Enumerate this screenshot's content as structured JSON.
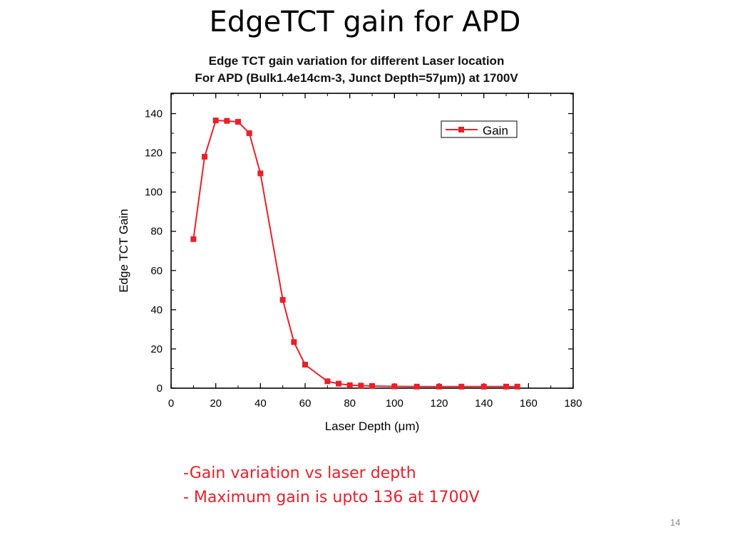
{
  "slide": {
    "title": "EdgeTCT gain for APD",
    "notes": [
      "-Gain variation vs laser depth",
      "- Maximum gain is upto 136 at 1700V"
    ],
    "page_number": "14"
  },
  "chart_data": {
    "type": "line",
    "title": "Edge TCT gain variation for different Laser location",
    "subtitle": "For APD (Bulk1.4e14cm-3, Junct Depth=57μm)) at 1700V",
    "xlabel": "Laser Depth (μm)",
    "ylabel": "Edge TCT Gain",
    "xlim": [
      0,
      180
    ],
    "ylim": [
      0,
      145
    ],
    "xticks": [
      0,
      20,
      40,
      60,
      80,
      100,
      120,
      140,
      160,
      180
    ],
    "yticks": [
      0,
      20,
      40,
      60,
      80,
      100,
      120,
      140
    ],
    "grid": false,
    "legend": "top-right",
    "series": [
      {
        "name": "Gain",
        "color": "#e8202a",
        "marker": "square",
        "x": [
          10,
          15,
          20,
          25,
          30,
          35,
          40,
          50,
          55,
          60,
          70,
          75,
          80,
          85,
          90,
          100,
          110,
          120,
          130,
          140,
          150,
          155
        ],
        "y": [
          76,
          118,
          136.5,
          136.3,
          135.8,
          130,
          109.5,
          45,
          23.5,
          12,
          3.5,
          2.3,
          1.5,
          1.3,
          1.1,
          0.9,
          0.8,
          0.8,
          0.8,
          0.8,
          0.8,
          0.8
        ]
      }
    ]
  }
}
